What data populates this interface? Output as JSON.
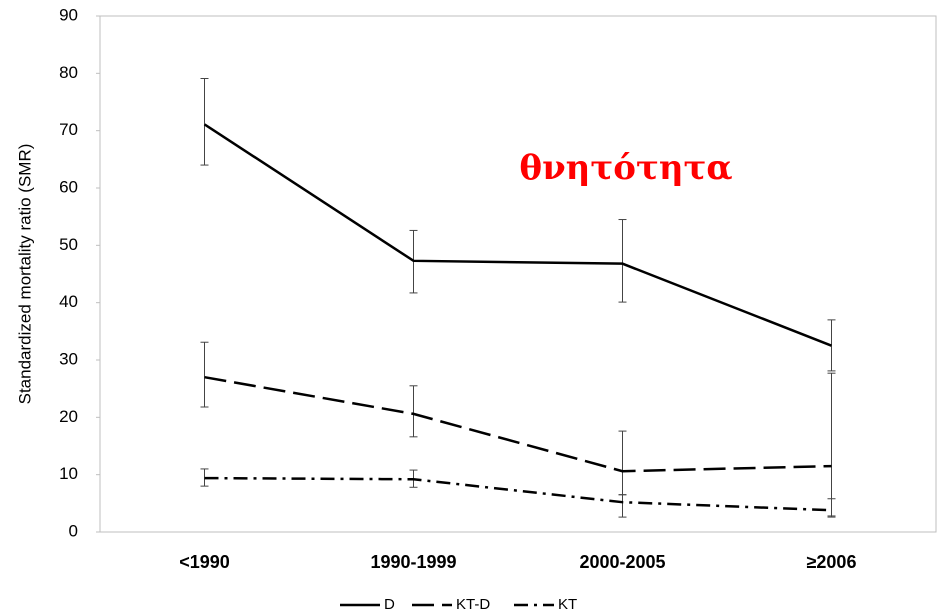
{
  "chart_data": {
    "type": "line",
    "y_label": "Standardized mortality ratio (SMR)",
    "annotation": "θνητότητα",
    "categories": [
      "<1990",
      "1990-1999",
      "2000-2005",
      "≥2006"
    ],
    "series": [
      {
        "name": "D",
        "color": "#000000",
        "dash": "solid",
        "values": [
          71.1,
          47.3,
          46.8,
          32.5
        ],
        "lower": [
          64.0,
          41.7,
          40.1,
          28.1
        ],
        "upper": [
          79.1,
          52.6,
          54.5,
          37.0
        ]
      },
      {
        "name": "KT-D",
        "color": "#000000",
        "dash": "dashed",
        "values": [
          27.0,
          20.6,
          10.6,
          11.5
        ],
        "lower": [
          21.8,
          16.6,
          6.5,
          2.8
        ],
        "upper": [
          33.1,
          25.5,
          17.6,
          27.7
        ]
      },
      {
        "name": "KT",
        "color": "#000000",
        "dash": "dashdot",
        "values": [
          9.4,
          9.2,
          5.2,
          3.8
        ],
        "lower": [
          8.0,
          7.8,
          2.6,
          2.6
        ],
        "upper": [
          11.0,
          10.8,
          6.5,
          5.8
        ]
      }
    ],
    "ylim": [
      0,
      90
    ],
    "yticks": [
      0,
      10,
      20,
      30,
      40,
      50,
      60,
      70,
      80,
      90
    ],
    "grid": false,
    "legend": "bottom"
  }
}
